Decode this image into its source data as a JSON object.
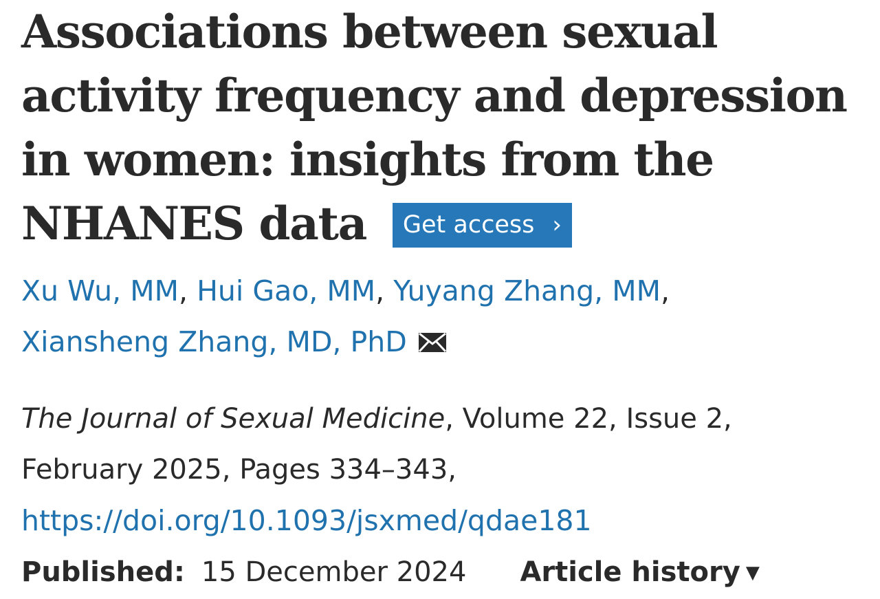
{
  "article": {
    "title_lines": [
      "Associations between sexual",
      "activity frequency and depression",
      "in women: insights from the",
      "NHANES data"
    ],
    "get_access_label": "Get access",
    "authors": [
      "Xu Wu, MM",
      "Hui Gao, MM",
      "Yuyang Zhang, MM",
      "Xiansheng Zhang, MD, PhD"
    ],
    "author_separator": ",",
    "journal_name": "The Journal of Sexual Medicine",
    "citation_rest_line1": ", Volume 22, Issue 2,",
    "citation_line2": "February 2025, Pages 334–343,",
    "doi": "https://doi.org/10.1093/jsxmed/qdae181",
    "published_label": "Published:",
    "published_date": "15 December 2024",
    "article_history_label": "Article history"
  },
  "icons": {
    "mail": "envelope-icon",
    "access_chevron": "chevron-right-icon",
    "history_caret": "caret-down-icon"
  },
  "colors": {
    "link": "#1f72ad",
    "button_bg": "#2778b8",
    "text": "#2a2a2a"
  }
}
